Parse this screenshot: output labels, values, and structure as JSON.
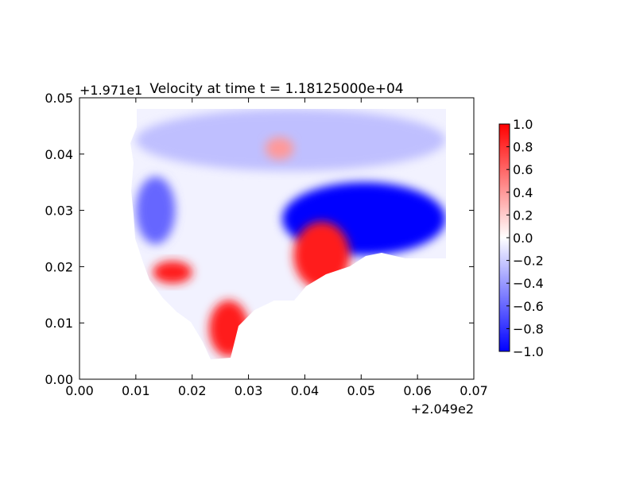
{
  "chart_data": {
    "type": "heatmap",
    "title": "Velocity at time t = 1.18125000e+04",
    "x_offset_label": "+2.049e2",
    "y_offset_label": "+1.971e1",
    "xlim": [
      0.0,
      0.07
    ],
    "ylim": [
      0.0,
      0.05
    ],
    "x_ticks": [
      "0.00",
      "0.01",
      "0.02",
      "0.03",
      "0.04",
      "0.05",
      "0.06",
      "0.07"
    ],
    "y_ticks": [
      "0.00",
      "0.01",
      "0.02",
      "0.03",
      "0.04",
      "0.05"
    ],
    "colorbar": {
      "range": [
        -1.0,
        1.0
      ],
      "colormap": "bwr",
      "ticks": [
        "1.0",
        "0.8",
        "0.6",
        "0.4",
        "0.2",
        "0.0",
        "−0.2",
        "−0.4",
        "−0.6",
        "−0.8",
        "−1.0"
      ]
    },
    "colors": {
      "low": "#0000ff",
      "mid": "#ffffff",
      "high": "#ff0000"
    },
    "regions": [
      {
        "x": [
          0.01,
          0.065
        ],
        "y": [
          0.037,
          0.048
        ],
        "value": -0.25
      },
      {
        "x": [
          0.036,
          0.065
        ],
        "y": [
          0.022,
          0.035
        ],
        "value": -1.0
      },
      {
        "x": [
          0.038,
          0.048
        ],
        "y": [
          0.016,
          0.028
        ],
        "value": 0.9
      },
      {
        "x": [
          0.013,
          0.02
        ],
        "y": [
          0.017,
          0.021
        ],
        "value": 0.9
      },
      {
        "x": [
          0.023,
          0.03
        ],
        "y": [
          0.004,
          0.014
        ],
        "value": 0.9
      },
      {
        "x": [
          0.033,
          0.038
        ],
        "y": [
          0.039,
          0.043
        ],
        "value": 0.4
      },
      {
        "x": [
          0.01,
          0.017
        ],
        "y": [
          0.024,
          0.036
        ],
        "value": -0.6
      }
    ]
  }
}
